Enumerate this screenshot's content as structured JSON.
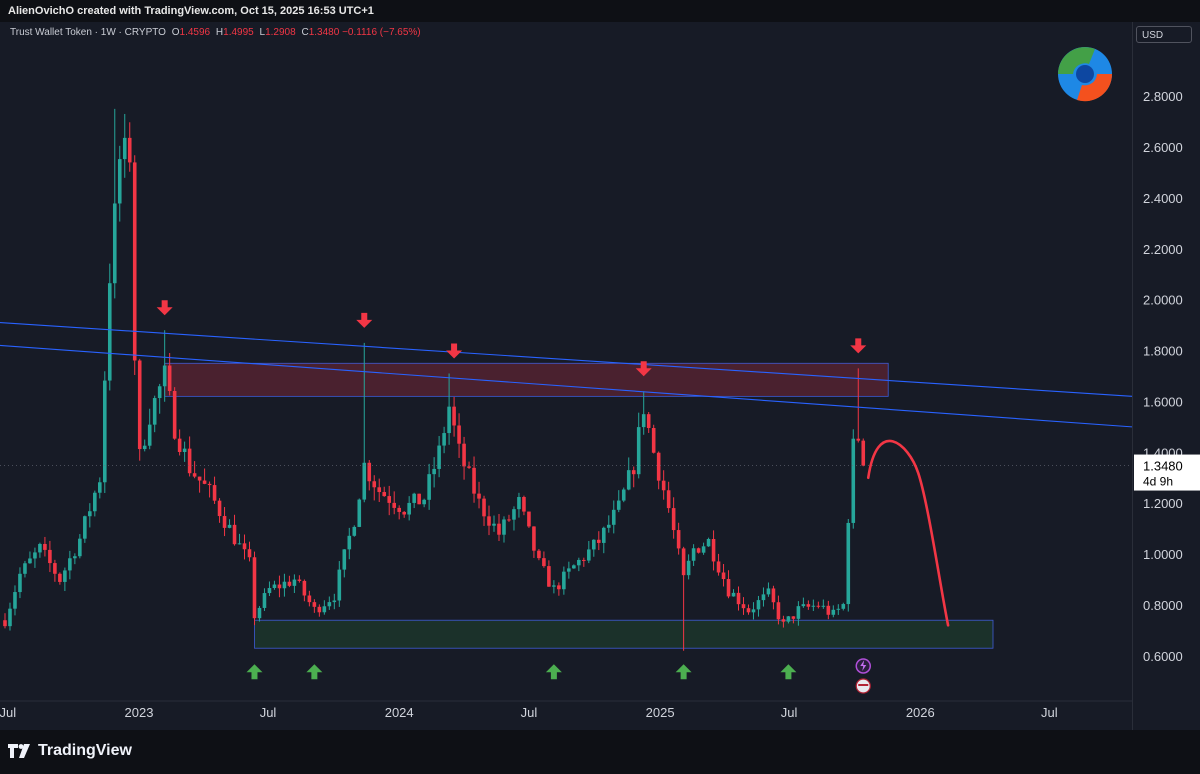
{
  "header": {
    "credit": "AlienOvichO created with TradingView.com, Oct 15, 2025 16:53 UTC+1"
  },
  "legend": {
    "symbol": "Trust Wallet Token · 1W · CRYPTO",
    "open_label": "O",
    "open": "1.4596",
    "high_label": "H",
    "high": "1.4995",
    "low_label": "L",
    "low": "1.2908",
    "close_label": "C",
    "close": "1.3480",
    "change": "−0.1116 (−7.65%)"
  },
  "price_axis": {
    "currency": "USD",
    "last_price": "1.3480",
    "countdown": "4d 9h"
  },
  "footer": {
    "brand": "TradingView",
    "logo_icon": "tradingview-logo-icon"
  },
  "colors": {
    "up": "#26a69a",
    "down": "#f23645",
    "trendline": "#2962ff",
    "projection": "#f23645",
    "resistance_zone": "#8a2a3c",
    "support_zone": "#1e3a2c"
  },
  "chart_data": {
    "type": "candlestick",
    "title": "Trust Wallet Token · 1W · CRYPTO",
    "ylabel": "USD",
    "ylim": [
      0.45,
      2.95
    ],
    "y_ticks": [
      "2.8000",
      "2.6000",
      "2.4000",
      "2.2000",
      "2.0000",
      "1.8000",
      "1.6000",
      "1.4000",
      "1.2000",
      "1.0000",
      "0.8000",
      "0.6000"
    ],
    "y_tick_values": [
      2.8,
      2.6,
      2.4,
      2.2,
      2.0,
      1.8,
      1.6,
      1.4,
      1.2,
      1.0,
      0.8,
      0.6
    ],
    "x_ticks": [
      {
        "label": "Jul",
        "date": "2022-07-01"
      },
      {
        "label": "2023",
        "date": "2023-01-01"
      },
      {
        "label": "Jul",
        "date": "2023-07-01"
      },
      {
        "label": "2024",
        "date": "2024-01-01"
      },
      {
        "label": "Jul",
        "date": "2024-07-01"
      },
      {
        "label": "2025",
        "date": "2025-01-01"
      },
      {
        "label": "Jul",
        "date": "2025-07-01"
      },
      {
        "label": "2026",
        "date": "2026-01-01"
      },
      {
        "label": "Jul",
        "date": "2026-07-01"
      }
    ],
    "xlim": [
      "2022-06-20",
      "2026-10-25"
    ],
    "grid": false,
    "anchors": [
      [
        "2022-06-27",
        0.74
      ],
      [
        "2022-07-18",
        0.92
      ],
      [
        "2022-08-15",
        1.02
      ],
      [
        "2022-09-12",
        0.9
      ],
      [
        "2022-10-10",
        1.06
      ],
      [
        "2022-11-07",
        1.3
      ],
      [
        "2022-11-21",
        2.1
      ],
      [
        "2022-12-05",
        2.55
      ],
      [
        "2022-12-19",
        2.58
      ],
      [
        "2022-12-26",
        1.78
      ],
      [
        "2023-01-02",
        1.38
      ],
      [
        "2023-01-16",
        1.55
      ],
      [
        "2023-02-06",
        1.7
      ],
      [
        "2023-02-20",
        1.5
      ],
      [
        "2023-03-13",
        1.34
      ],
      [
        "2023-04-10",
        1.24
      ],
      [
        "2023-05-08",
        1.1
      ],
      [
        "2023-06-05",
        0.96
      ],
      [
        "2023-06-12",
        0.76
      ],
      [
        "2023-07-03",
        0.86
      ],
      [
        "2023-08-07",
        0.9
      ],
      [
        "2023-09-04",
        0.78
      ],
      [
        "2023-10-02",
        0.84
      ],
      [
        "2023-10-30",
        1.14
      ],
      [
        "2023-11-13",
        1.35
      ],
      [
        "2023-12-04",
        1.25
      ],
      [
        "2024-01-08",
        1.18
      ],
      [
        "2024-02-05",
        1.22
      ],
      [
        "2024-02-26",
        1.4
      ],
      [
        "2024-03-11",
        1.58
      ],
      [
        "2024-03-25",
        1.4
      ],
      [
        "2024-04-22",
        1.2
      ],
      [
        "2024-05-20",
        1.08
      ],
      [
        "2024-06-17",
        1.2
      ],
      [
        "2024-07-15",
        0.96
      ],
      [
        "2024-08-05",
        0.86
      ],
      [
        "2024-09-02",
        0.95
      ],
      [
        "2024-10-07",
        1.05
      ],
      [
        "2024-11-04",
        1.18
      ],
      [
        "2024-11-25",
        1.35
      ],
      [
        "2024-12-09",
        1.58
      ],
      [
        "2024-12-23",
        1.4
      ],
      [
        "2025-01-13",
        1.18
      ],
      [
        "2025-02-03",
        0.9
      ],
      [
        "2025-02-17",
        1.02
      ],
      [
        "2025-03-10",
        1.05
      ],
      [
        "2025-04-07",
        0.86
      ],
      [
        "2025-05-05",
        0.78
      ],
      [
        "2025-06-02",
        0.84
      ],
      [
        "2025-06-23",
        0.72
      ],
      [
        "2025-07-14",
        0.78
      ],
      [
        "2025-08-11",
        0.8
      ],
      [
        "2025-09-01",
        0.76
      ],
      [
        "2025-09-15",
        0.8
      ],
      [
        "2025-09-22",
        1.15
      ],
      [
        "2025-09-29",
        1.42
      ],
      [
        "2025-10-06",
        1.46
      ],
      [
        "2025-10-13",
        1.348
      ]
    ],
    "spikes": [
      [
        "2022-11-28",
        2.75
      ],
      [
        "2022-12-12",
        2.73
      ],
      [
        "2023-02-06",
        1.88
      ],
      [
        "2023-11-13",
        1.83
      ],
      [
        "2024-03-11",
        1.71
      ],
      [
        "2024-12-09",
        1.64
      ],
      [
        "2025-02-03",
        0.62
      ],
      [
        "2025-10-06",
        1.73
      ]
    ],
    "resistance_zone": {
      "from": "2023-02-06",
      "to": "2025-11-17",
      "low": 1.62,
      "high": 1.75
    },
    "support_zone": {
      "from": "2023-06-12",
      "to": "2026-04-13",
      "low": 0.63,
      "high": 0.74
    },
    "trendlines": [
      {
        "from": [
          "2022-06-20",
          1.91
        ],
        "to": [
          "2026-10-25",
          1.62
        ]
      },
      {
        "from": [
          "2022-06-20",
          1.82
        ],
        "to": [
          "2026-10-25",
          1.5
        ]
      }
    ],
    "projection": [
      [
        "2025-10-20",
        1.3
      ],
      [
        "2025-11-10",
        1.42
      ],
      [
        "2025-12-15",
        1.28
      ],
      [
        "2026-02-09",
        0.72
      ]
    ],
    "sell_arrows": [
      [
        "2023-02-06",
        1.88
      ],
      [
        "2023-11-13",
        1.83
      ],
      [
        "2024-03-18",
        1.71
      ],
      [
        "2024-12-09",
        1.64
      ],
      [
        "2025-10-06",
        1.73
      ]
    ],
    "buy_arrows": [
      "2023-06-12",
      "2023-09-04",
      "2024-08-05",
      "2025-02-03",
      "2025-06-30"
    ],
    "last_price": 1.348
  }
}
